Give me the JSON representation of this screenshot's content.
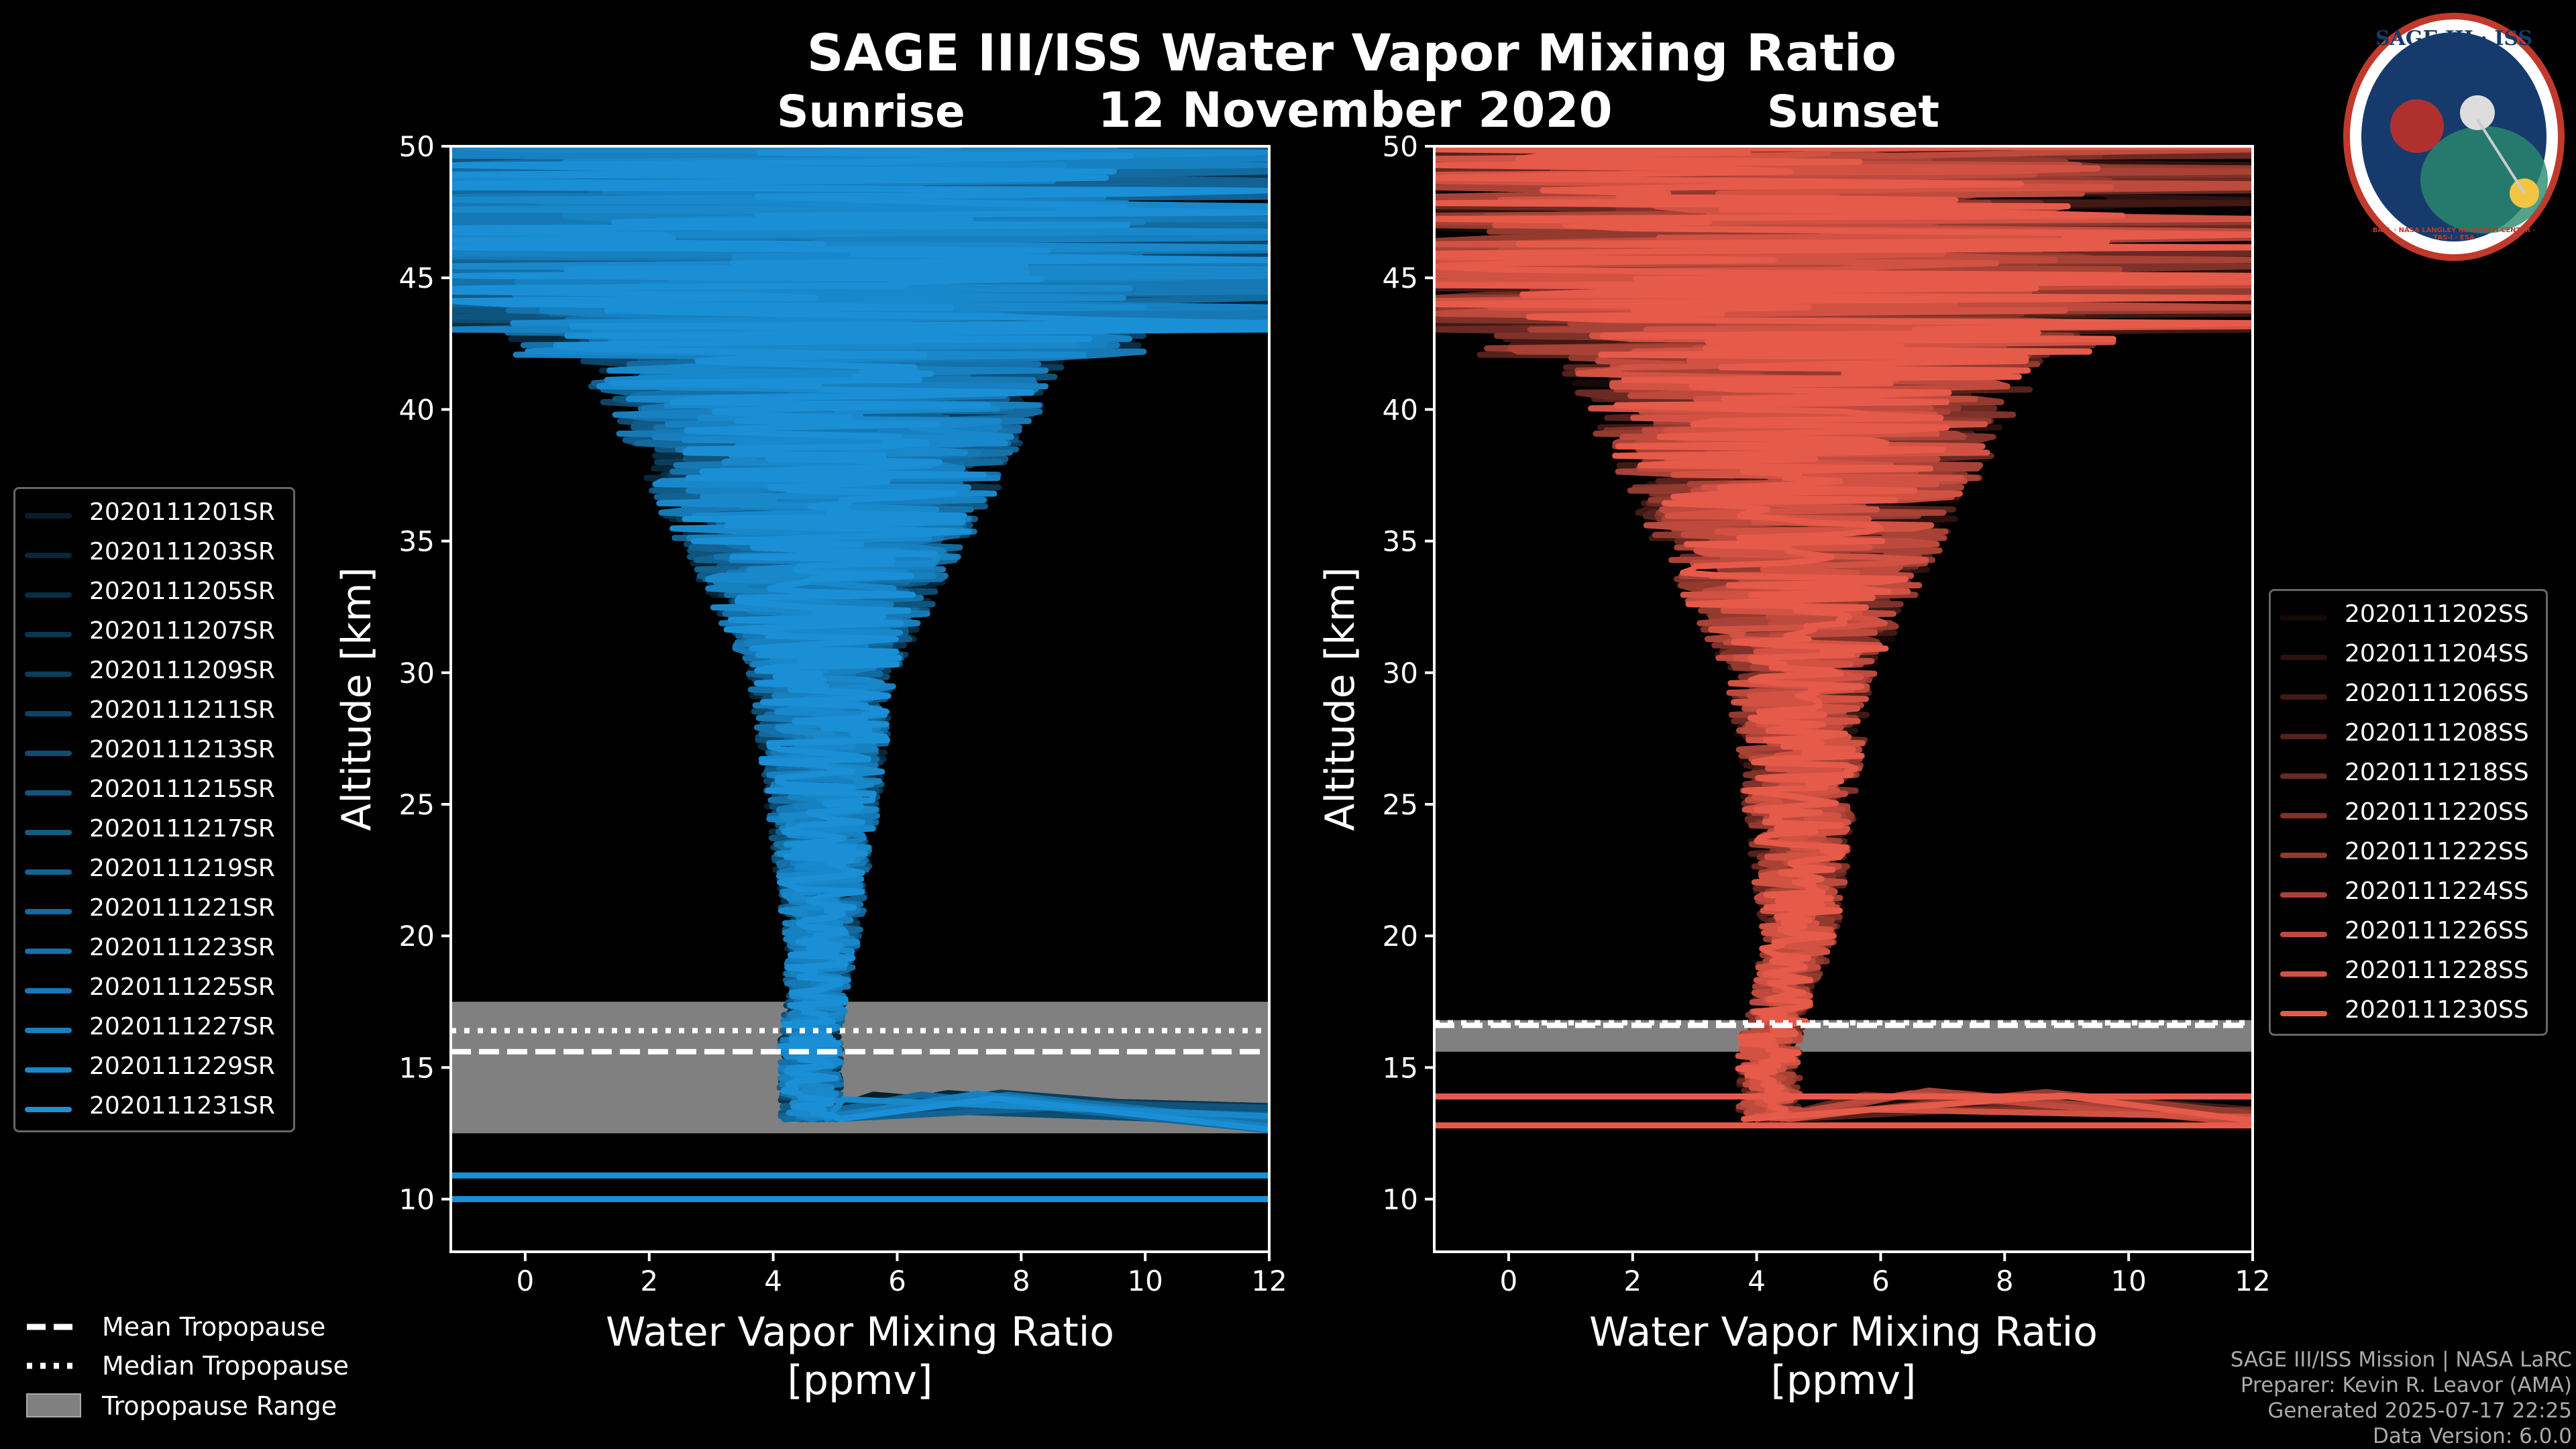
{
  "title": "SAGE III/ISS Water Vapor Mixing Ratio",
  "date_label": "12 November 2020",
  "colors": {
    "background": "#000000",
    "sunrise": "#1a8fd6",
    "sunset": "#e65a4a",
    "tropo_band": "#808080"
  },
  "logo": {
    "line1": "SAGE III · ISS",
    "ring": "BALL · NASA LANGLEY RESEARCH CENTER · TAS-I · ESA"
  },
  "footer": {
    "line1": "SAGE III/ISS Mission | NASA LaRC",
    "line2": "Preparer: Kevin R. Leavor (AMA)",
    "line3": "Generated 2025-07-17 22:25",
    "line4": "Data Version: 6.0.0"
  },
  "tropo_legend": {
    "mean": "Mean Tropopause",
    "median": "Median Tropopause",
    "range": "Tropopause Range"
  },
  "chart_data": [
    {
      "type": "line",
      "title": "Sunrise",
      "xlabel": "Water Vapor Mixing Ratio\n[ppmv]",
      "ylabel": "Altitude [km]",
      "xlim": [
        -1.2,
        12
      ],
      "ylim": [
        8,
        50
      ],
      "xticks": [
        0,
        2,
        4,
        6,
        8,
        10,
        12
      ],
      "yticks": [
        10,
        15,
        20,
        25,
        30,
        35,
        40,
        45,
        50
      ],
      "tropopause": {
        "mean_km": 15.6,
        "median_km": 16.4,
        "range_km": [
          12.5,
          17.5
        ]
      },
      "profile_shape": {
        "center_ppmv": 4.8,
        "low_center_ppmv": 4.6
      },
      "series": [
        "2020111201SR",
        "2020111203SR",
        "2020111205SR",
        "2020111207SR",
        "2020111209SR",
        "2020111211SR",
        "2020111213SR",
        "2020111215SR",
        "2020111217SR",
        "2020111219SR",
        "2020111221SR",
        "2020111223SR",
        "2020111225SR",
        "2020111227SR",
        "2020111229SR",
        "2020111231SR"
      ],
      "legend_position": "left"
    },
    {
      "type": "line",
      "title": "Sunset",
      "xlabel": "Water Vapor Mixing Ratio\n[ppmv]",
      "ylabel": "Altitude [km]",
      "xlim": [
        -1.2,
        12
      ],
      "ylim": [
        8,
        50
      ],
      "xticks": [
        0,
        2,
        4,
        6,
        8,
        10,
        12
      ],
      "yticks": [
        10,
        15,
        20,
        25,
        30,
        35,
        40,
        45,
        50
      ],
      "tropopause": {
        "mean_km": 16.6,
        "median_km": 16.7,
        "range_km": [
          15.6,
          16.8
        ]
      },
      "profile_shape": {
        "center_ppmv": 4.7,
        "low_center_ppmv": 4.2
      },
      "series": [
        "2020111202SS",
        "2020111204SS",
        "2020111206SS",
        "2020111208SS",
        "2020111218SS",
        "2020111220SS",
        "2020111222SS",
        "2020111224SS",
        "2020111226SS",
        "2020111228SS",
        "2020111230SS"
      ],
      "legend_position": "right"
    }
  ]
}
